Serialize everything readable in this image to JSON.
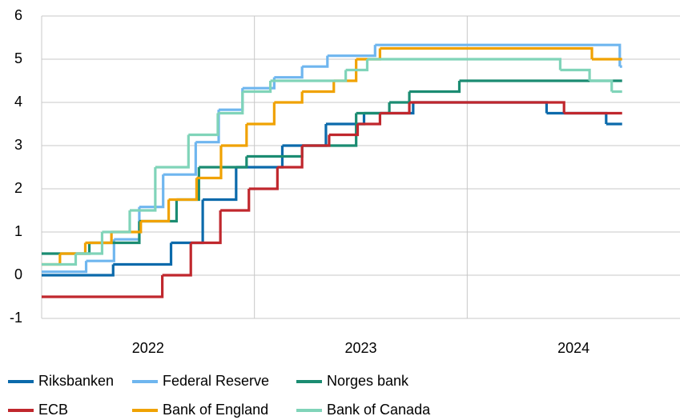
{
  "chart_data": {
    "type": "line",
    "step": true,
    "ylim": [
      -1,
      6
    ],
    "yticks": [
      -1,
      0,
      1,
      2,
      3,
      4,
      5,
      6
    ],
    "xlim": [
      2022,
      2025
    ],
    "xticks": [
      {
        "value": 2022.5,
        "label": "2022"
      },
      {
        "value": 2023.5,
        "label": "2023"
      },
      {
        "value": 2024.5,
        "label": "2024"
      }
    ],
    "xgrid": [
      2022,
      2023,
      2024
    ],
    "grid": true,
    "legend": "bottom",
    "series": [
      {
        "name": "Riksbanken",
        "color": "#0b6aab",
        "x": [
          2022.0,
          2022.336,
          2022.608,
          2022.757,
          2022.914,
          2023.131,
          2023.336,
          2023.515,
          2023.746,
          2024.373,
          2024.653,
          2024.728
        ],
        "values": [
          0,
          0.25,
          0.75,
          1.75,
          2.5,
          3.0,
          3.5,
          3.75,
          4.0,
          3.75,
          3.5,
          3.5
        ]
      },
      {
        "name": "Federal Reserve",
        "color": "#6fb6ef",
        "x": [
          2022.0,
          2022.209,
          2022.34,
          2022.459,
          2022.571,
          2022.724,
          2022.832,
          2022.944,
          2023.093,
          2023.224,
          2023.343,
          2023.567,
          2024.717,
          2024.728
        ],
        "values": [
          0.08,
          0.33,
          0.83,
          1.58,
          2.33,
          3.08,
          3.83,
          4.33,
          4.58,
          4.83,
          5.08,
          5.33,
          4.83,
          4.83
        ]
      },
      {
        "name": "Norges bank",
        "color": "#1b8c72",
        "x": [
          2022.0,
          2022.224,
          2022.459,
          2022.634,
          2022.739,
          2022.963,
          2023.224,
          2023.478,
          2023.634,
          2023.728,
          2023.963,
          2024.728
        ],
        "values": [
          0.5,
          0.75,
          1.25,
          1.75,
          2.5,
          2.75,
          3.0,
          3.75,
          4.0,
          4.25,
          4.5,
          4.5
        ]
      },
      {
        "name": "ECB",
        "color": "#c0272d",
        "x": [
          2022.0,
          2022.567,
          2022.701,
          2022.84,
          2022.974,
          2023.108,
          2023.224,
          2023.351,
          2023.485,
          2023.59,
          2023.728,
          2024.455,
          2024.728
        ],
        "values": [
          -0.5,
          0,
          0.75,
          1.5,
          2.0,
          2.5,
          3.0,
          3.25,
          3.5,
          3.75,
          4.0,
          3.75,
          3.75
        ]
      },
      {
        "name": "Bank of England",
        "color": "#f0a202",
        "x": [
          2022.0,
          2022.086,
          2022.205,
          2022.328,
          2022.466,
          2022.597,
          2022.728,
          2022.843,
          2022.963,
          2023.093,
          2023.224,
          2023.373,
          2023.478,
          2023.59,
          2024.586,
          2024.728
        ],
        "values": [
          0.25,
          0.5,
          0.75,
          1.0,
          1.25,
          1.75,
          2.25,
          3.0,
          3.5,
          4.0,
          4.25,
          4.5,
          5.0,
          5.25,
          5.0,
          5.0
        ]
      },
      {
        "name": "Bank of Canada",
        "color": "#80d4b9",
        "x": [
          2022.0,
          2022.16,
          2022.284,
          2022.414,
          2022.534,
          2022.69,
          2022.828,
          2022.944,
          2023.075,
          2023.429,
          2023.53,
          2024.437,
          2024.575,
          2024.679,
          2024.728
        ],
        "values": [
          0.25,
          0.5,
          1.0,
          1.5,
          2.5,
          3.25,
          3.75,
          4.25,
          4.5,
          4.75,
          5.0,
          4.75,
          4.5,
          4.25,
          4.25
        ]
      }
    ]
  }
}
